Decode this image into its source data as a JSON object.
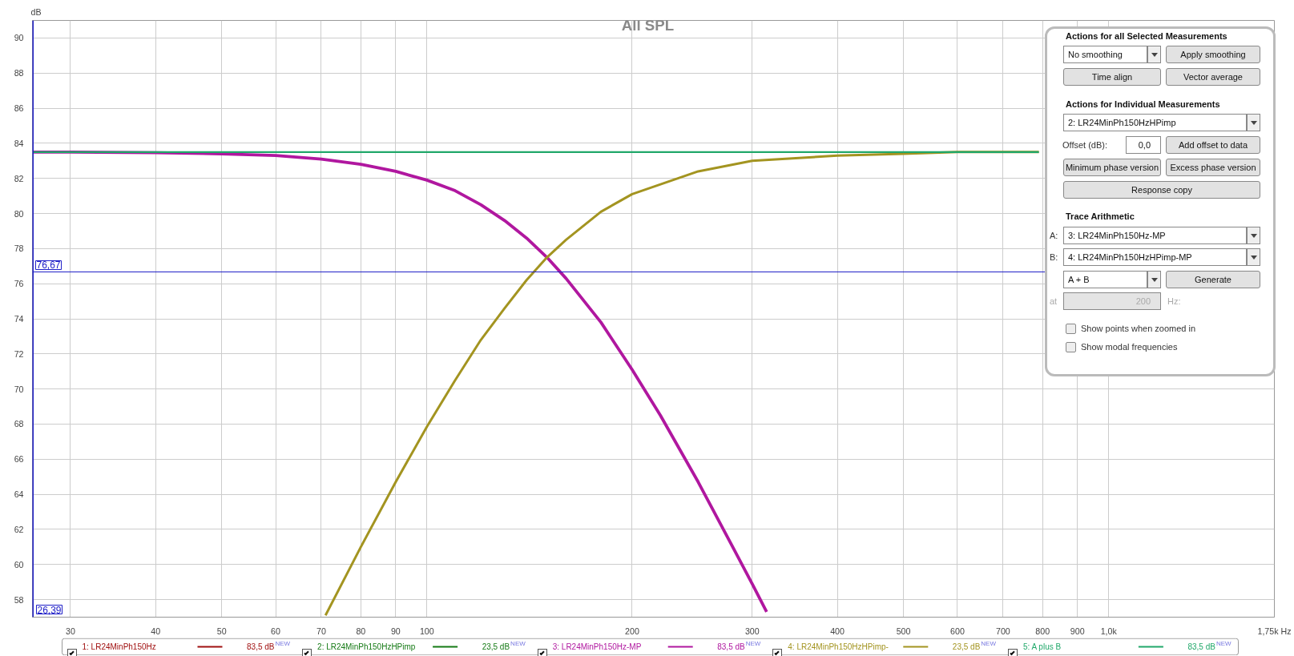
{
  "chart_data": {
    "type": "line",
    "title": "All SPL",
    "ylabel": "dB",
    "xlim": [
      26.39,
      1750
    ],
    "ylim": [
      57,
      91
    ],
    "xticks": [
      30,
      40,
      50,
      60,
      70,
      80,
      90,
      100,
      200,
      300,
      400,
      500,
      600,
      700,
      800,
      900,
      {
        "value": 1000,
        "label": "1,0k"
      },
      {
        "value": 1750,
        "label": "1,75k Hz"
      }
    ],
    "yticks": [
      58,
      60,
      62,
      64,
      66,
      68,
      70,
      72,
      74,
      76,
      78,
      80,
      82,
      84,
      86,
      88,
      90
    ],
    "log": "x",
    "grid": true,
    "legend": "bottom",
    "series": [
      {
        "name": "1: LR24MinPh150Hz",
        "color": "#a01010",
        "values": [
          null
        ]
      },
      {
        "name": "2: LR24MinPh150HzHPimp",
        "color": "#157a15",
        "values": [
          null
        ]
      },
      {
        "name": "3: LR24MinPh150Hz-MP",
        "color": "#b0179f",
        "x": [
          26.39,
          30,
          40,
          50,
          60,
          70,
          80,
          90,
          100,
          110,
          120,
          130,
          140,
          150,
          160,
          180,
          200,
          220,
          250,
          280,
          300,
          315
        ],
        "values": [
          83.5,
          83.5,
          83.46,
          83.4,
          83.3,
          83.1,
          82.8,
          82.4,
          81.9,
          81.3,
          80.5,
          79.6,
          78.6,
          77.5,
          76.3,
          73.8,
          71.1,
          68.5,
          64.7,
          61.1,
          58.9,
          57.3
        ]
      },
      {
        "name": "4: LR24MinPh150HzHPimp-",
        "color": "#a39420",
        "x": [
          71,
          80,
          90,
          100,
          110,
          120,
          130,
          140,
          150,
          160,
          180,
          200,
          250,
          300,
          400,
          500,
          600,
          790
        ],
        "values": [
          57.1,
          61.0,
          64.7,
          67.85,
          70.5,
          72.8,
          74.6,
          76.2,
          77.5,
          78.5,
          80.1,
          81.1,
          82.4,
          83.0,
          83.3,
          83.4,
          83.5,
          83.5
        ]
      },
      {
        "name": "5: A plus B",
        "color": "#21a86a",
        "x": [
          26.39,
          100,
          300,
          790
        ],
        "values": [
          83.5,
          83.5,
          83.5,
          83.5
        ]
      }
    ],
    "ref_lines": [
      {
        "axis": "y",
        "value": 76.67,
        "label": "76,67",
        "color": "#2020c8"
      },
      {
        "axis": "x",
        "value": 26.39,
        "label": "26,39",
        "color": "#2020c8"
      }
    ],
    "annotations": [
      "Actions for all Selected Measurements",
      "No  smoothing",
      "Apply smoothing",
      "Time align",
      "Vector average",
      "Actions for Individual Measurements",
      "2: LR24MinPh150HzHPimp",
      "Offset (dB):",
      "0,0",
      "Add offset to data",
      "Minimum phase version",
      "Excess phase version",
      "Response copy",
      "Trace Arithmetic",
      "A:",
      "3: LR24MinPh150Hz-MP",
      "B:",
      "4: LR24MinPh150HzHPimp-MP",
      "A + B",
      "Generate",
      "at",
      "200",
      "Hz:",
      "Show points when zoomed in",
      "Show modal frequencies",
      "83,5 dB$^{NEW}$",
      "23,5 dB$^{NEW}$",
      "83,5 dB$^{NEW}$",
      "23,5 dB$^{NEW}$",
      "83,5 dB$^{NEW}$"
    ]
  }
}
